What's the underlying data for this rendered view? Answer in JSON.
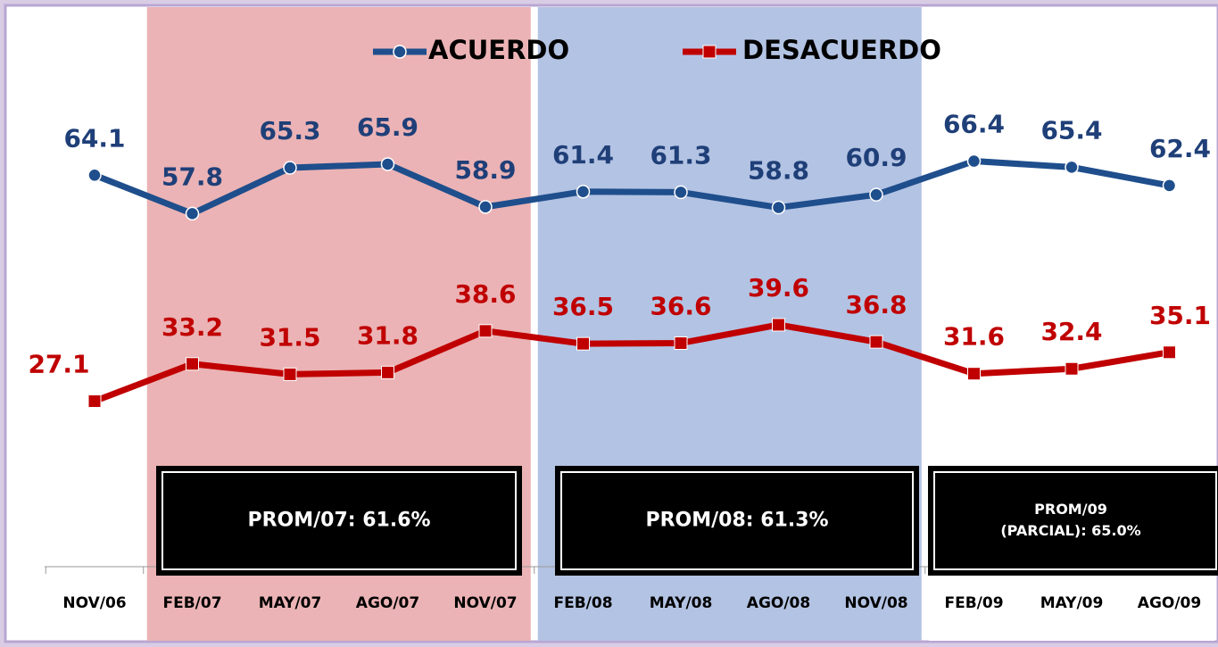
{
  "chart_data": {
    "type": "line",
    "categories": [
      "NOV/06",
      "FEB/07",
      "MAY/07",
      "AGO/07",
      "NOV/07",
      "FEB/08",
      "MAY/08",
      "AGO/08",
      "NOV/08",
      "FEB/09",
      "MAY/09",
      "AGO/09"
    ],
    "series": [
      {
        "name": "ACUERDO",
        "color": "#1f4e8c",
        "label_color": "#1f3f78",
        "marker": "circle",
        "values": [
          64.1,
          57.8,
          65.3,
          65.9,
          58.9,
          61.4,
          61.3,
          58.8,
          60.9,
          66.4,
          65.4,
          62.4
        ]
      },
      {
        "name": "DESACUERDO",
        "color": "#c00000",
        "label_color": "#c00000",
        "marker": "square",
        "values": [
          27.1,
          33.2,
          31.5,
          31.8,
          38.6,
          36.5,
          36.6,
          39.6,
          36.8,
          31.6,
          32.4,
          35.1
        ]
      }
    ],
    "ylim": [
      0,
      90
    ],
    "periods": [
      {
        "start": "FEB/07",
        "end": "NOV/07",
        "color": "#ebb3b5",
        "label": [
          "PROM/07: 61.6%"
        ]
      },
      {
        "start": "FEB/08",
        "end": "NOV/08",
        "color": "#b3c3e3",
        "label": [
          "PROM/08: 61.3%"
        ]
      },
      {
        "start": "FEB/09",
        "end": "AGO/09",
        "color": "#ffffff",
        "label": [
          "PROM/09",
          "(PARCIAL): 65.0%"
        ]
      }
    ]
  }
}
